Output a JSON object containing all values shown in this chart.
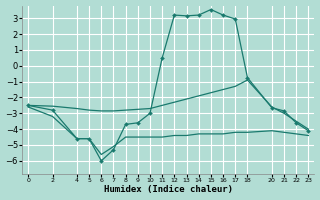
{
  "xlabel": "Humidex (Indice chaleur)",
  "background_color": "#b2ddd4",
  "grid_color": "#ffffff",
  "line_color": "#1a7a6e",
  "x_ticks": [
    0,
    2,
    4,
    5,
    6,
    7,
    8,
    9,
    10,
    11,
    12,
    13,
    14,
    15,
    16,
    17,
    18,
    20,
    21,
    22,
    23
  ],
  "y_ticks": [
    -6,
    -5,
    -4,
    -3,
    -2,
    -1,
    0,
    1,
    2,
    3
  ],
  "ylim": [
    -6.8,
    3.8
  ],
  "xlim": [
    -0.5,
    23.5
  ],
  "series": [
    {
      "x": [
        0,
        2,
        4,
        5,
        6,
        7,
        8,
        9,
        10,
        11,
        12,
        13,
        14,
        15,
        16,
        17,
        18,
        20,
        21,
        22,
        23
      ],
      "y": [
        -2.5,
        -2.55,
        -2.7,
        -2.8,
        -2.85,
        -2.85,
        -2.8,
        -2.75,
        -2.7,
        -2.5,
        -2.3,
        -2.1,
        -1.9,
        -1.7,
        -1.5,
        -1.3,
        -0.9,
        -2.6,
        -3.0,
        -3.5,
        -4.0
      ],
      "marker": false
    },
    {
      "x": [
        0,
        2,
        4,
        5,
        6,
        7,
        8,
        9,
        10,
        11,
        12,
        13,
        14,
        15,
        16,
        17,
        18,
        20,
        21,
        22,
        23
      ],
      "y": [
        -2.6,
        -3.2,
        -4.6,
        -4.6,
        -5.6,
        -5.1,
        -4.5,
        -4.5,
        -4.5,
        -4.5,
        -4.4,
        -4.4,
        -4.3,
        -4.3,
        -4.3,
        -4.2,
        -4.2,
        -4.1,
        -4.2,
        -4.3,
        -4.4
      ],
      "marker": false
    },
    {
      "x": [
        0,
        2,
        4,
        5,
        6,
        7,
        8,
        9,
        10,
        11,
        12,
        13,
        14,
        15,
        16,
        17,
        18,
        20,
        21,
        22,
        23
      ],
      "y": [
        -2.5,
        -2.8,
        -4.6,
        -4.6,
        -6.0,
        -5.3,
        -3.7,
        -3.6,
        -3.0,
        0.5,
        3.2,
        3.15,
        3.2,
        3.55,
        3.2,
        2.95,
        -0.75,
        -2.65,
        -2.85,
        -3.6,
        -4.1
      ],
      "marker": true
    }
  ]
}
